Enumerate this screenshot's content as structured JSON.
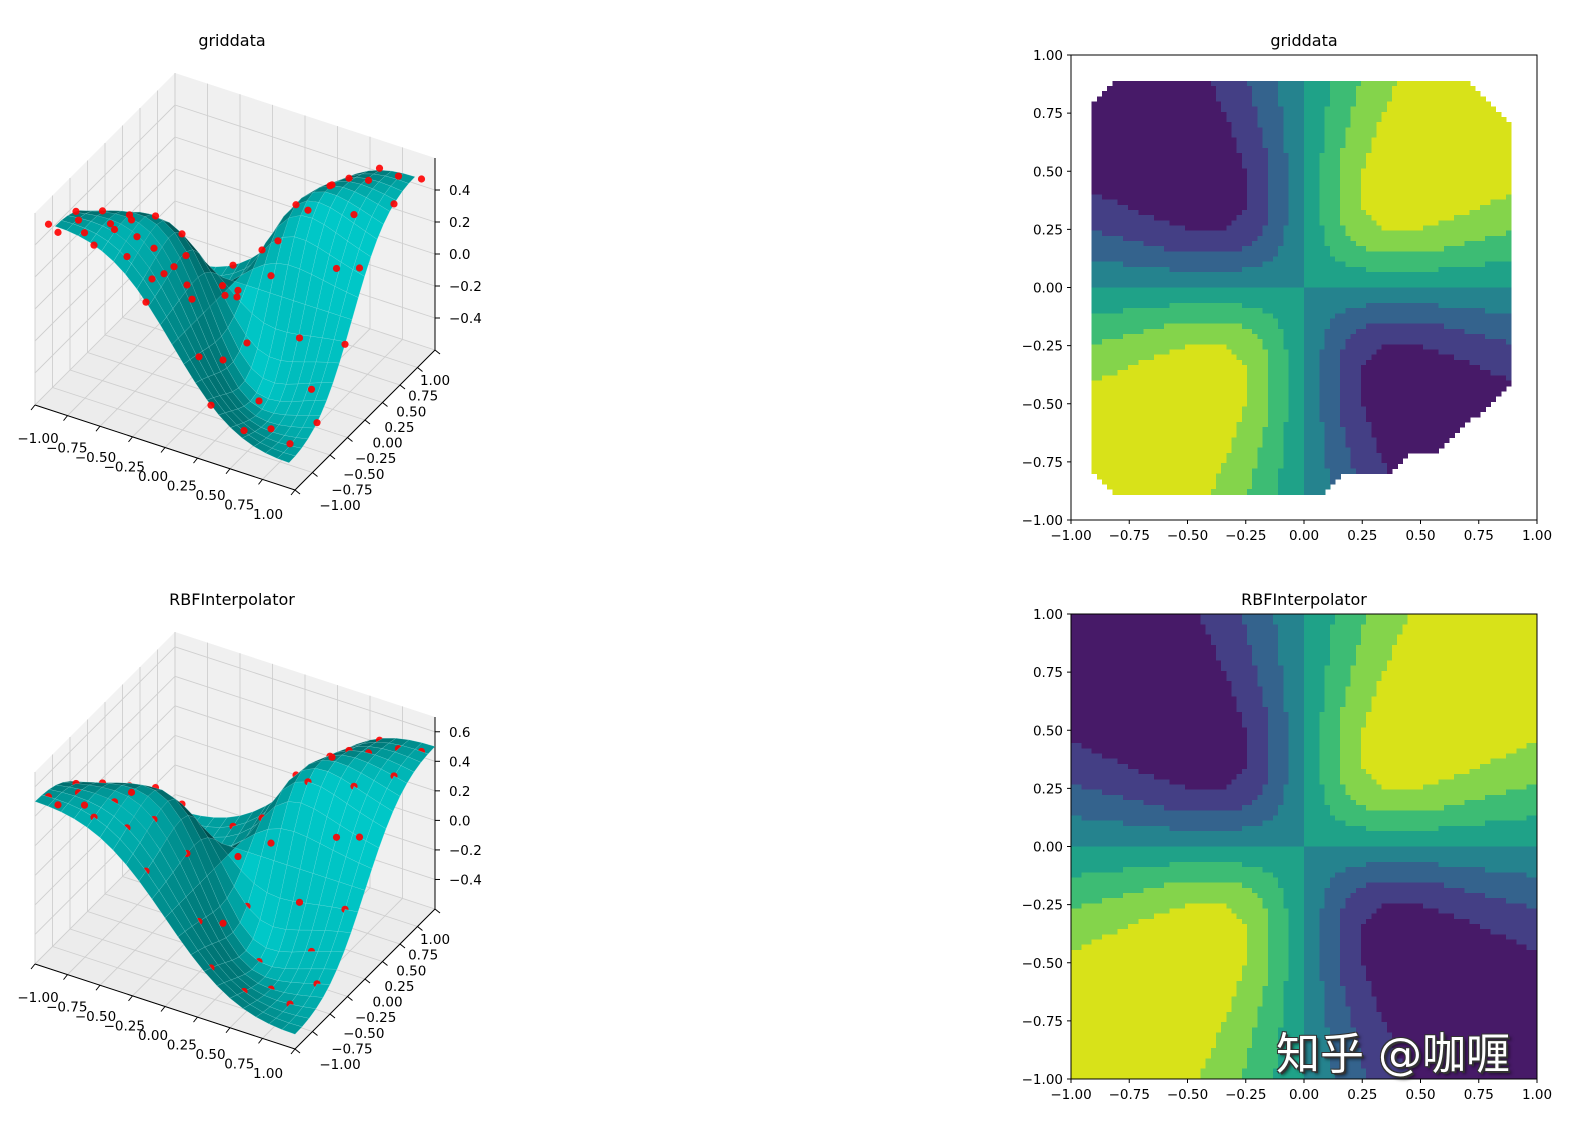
{
  "watermark": "知乎 @咖喱",
  "chart_data": [
    {
      "type": "surface3d",
      "title": "griddata",
      "xlim": [
        -1,
        1
      ],
      "ylim": [
        -1,
        1
      ],
      "zlim": [
        -0.6,
        0.6
      ],
      "xticks": [
        -1,
        -0.75,
        -0.5,
        -0.25,
        0,
        0.25,
        0.5,
        0.75,
        1
      ],
      "xtick_labels": [
        "−1.00",
        "−0.75",
        "−0.50",
        "−0.25",
        "0.00",
        "0.25",
        "0.50",
        "0.75",
        "1.00"
      ],
      "yticks": [
        -1,
        -0.75,
        -0.5,
        -0.25,
        0,
        0.25,
        0.5,
        0.75,
        1
      ],
      "ytick_labels": [
        "−1.00",
        "−0.75",
        "−0.50",
        "−0.25",
        "0.00",
        "0.25",
        "0.50",
        "0.75",
        "1.00"
      ],
      "zticks": [
        -0.4,
        -0.2,
        0,
        0.2,
        0.4
      ],
      "ztick_labels": [
        "−0.4",
        "−0.2",
        "0.0",
        "0.2",
        "0.4"
      ],
      "surface_extent": [
        -0.9,
        0.9
      ],
      "surface_color": "#00bfbf",
      "scatter_color": "#ff0000",
      "grid": true
    },
    {
      "type": "contourf",
      "title": "griddata",
      "xlim": [
        -1,
        1
      ],
      "ylim": [
        -1,
        1
      ],
      "xticks": [
        -1,
        -0.75,
        -0.5,
        -0.25,
        0,
        0.25,
        0.5,
        0.75,
        1
      ],
      "xtick_labels": [
        "−1.00",
        "−0.75",
        "−0.50",
        "−0.25",
        "0.00",
        "0.25",
        "0.50",
        "0.75",
        "1.00"
      ],
      "yticks": [
        -1,
        -0.75,
        -0.5,
        -0.25,
        0,
        0.25,
        0.5,
        0.75,
        1
      ],
      "ytick_labels": [
        "−1.00",
        "−0.75",
        "−0.50",
        "−0.25",
        "0.00",
        "0.25",
        "0.50",
        "0.75",
        "1.00"
      ],
      "levels": [
        -0.5,
        -0.375,
        -0.25,
        -0.125,
        0,
        0.125,
        0.25,
        0.375,
        0.5
      ],
      "colors": [
        "#471a68",
        "#443f85",
        "#34638d",
        "#25838e",
        "#1fa288",
        "#3dbc74",
        "#84d44b",
        "#d8e219"
      ],
      "data_region": [
        [
          -0.9,
          0.8
        ],
        [
          -0.8,
          0.9
        ],
        [
          0.7,
          0.9
        ],
        [
          0.9,
          0.7
        ],
        [
          0.9,
          -0.4
        ],
        [
          0.58,
          -0.7
        ],
        [
          0.47,
          -0.7
        ],
        [
          0.37,
          -0.8
        ],
        [
          0.16,
          -0.8
        ],
        [
          0.06,
          -0.9
        ],
        [
          -0.8,
          -0.9
        ],
        [
          -0.9,
          -0.8
        ]
      ]
    },
    {
      "type": "surface3d",
      "title": "RBFInterpolator",
      "xlim": [
        -1,
        1
      ],
      "ylim": [
        -1,
        1
      ],
      "zlim": [
        -0.6,
        0.7
      ],
      "xticks": [
        -1,
        -0.75,
        -0.5,
        -0.25,
        0,
        0.25,
        0.5,
        0.75,
        1
      ],
      "xtick_labels": [
        "−1.00",
        "−0.75",
        "−0.50",
        "−0.25",
        "0.00",
        "0.25",
        "0.50",
        "0.75",
        "1.00"
      ],
      "yticks": [
        -1,
        -0.75,
        -0.5,
        -0.25,
        0,
        0.25,
        0.5,
        0.75,
        1
      ],
      "ytick_labels": [
        "−1.00",
        "−0.75",
        "−0.50",
        "−0.25",
        "0.00",
        "0.25",
        "0.50",
        "0.75",
        "1.00"
      ],
      "zticks": [
        -0.4,
        -0.2,
        0,
        0.2,
        0.4,
        0.6
      ],
      "ztick_labels": [
        "−0.4",
        "−0.2",
        "0.0",
        "0.2",
        "0.4",
        "0.6"
      ],
      "surface_extent": [
        -1,
        1
      ],
      "surface_color": "#00bfbf",
      "scatter_color": "#ff0000",
      "grid": true
    },
    {
      "type": "contourf",
      "title": "RBFInterpolator",
      "xlim": [
        -1,
        1
      ],
      "ylim": [
        -1,
        1
      ],
      "xticks": [
        -1,
        -0.75,
        -0.5,
        -0.25,
        0,
        0.25,
        0.5,
        0.75,
        1
      ],
      "xtick_labels": [
        "−1.00",
        "−0.75",
        "−0.50",
        "−0.25",
        "0.00",
        "0.25",
        "0.50",
        "0.75",
        "1.00"
      ],
      "yticks": [
        -1,
        -0.75,
        -0.5,
        -0.25,
        0,
        0.25,
        0.5,
        0.75,
        1
      ],
      "ytick_labels": [
        "−1.00",
        "−0.75",
        "−0.50",
        "−0.25",
        "0.00",
        "0.25",
        "0.50",
        "0.75",
        "1.00"
      ],
      "levels": [
        -0.5,
        -0.375,
        -0.25,
        -0.125,
        0,
        0.125,
        0.25,
        0.375,
        0.5
      ],
      "colors": [
        "#471a68",
        "#443f85",
        "#34638d",
        "#25838e",
        "#1fa288",
        "#3dbc74",
        "#84d44b",
        "#d8e219"
      ]
    }
  ],
  "scatter_points": [
    [
      -0.95,
      -0.9
    ],
    [
      -0.85,
      -0.95
    ],
    [
      -0.8,
      -0.75
    ],
    [
      -0.7,
      -0.85
    ],
    [
      -0.6,
      -0.9
    ],
    [
      -0.55,
      -0.7
    ],
    [
      -0.9,
      -0.6
    ],
    [
      -0.75,
      -0.5
    ],
    [
      -0.5,
      -0.55
    ],
    [
      -0.4,
      -0.8
    ],
    [
      -0.3,
      -0.6
    ],
    [
      -0.2,
      -0.9
    ],
    [
      -0.65,
      -0.3
    ],
    [
      -0.45,
      -0.3
    ],
    [
      -0.85,
      -0.2
    ],
    [
      -0.6,
      0.1
    ],
    [
      -0.3,
      -0.2
    ],
    [
      -0.1,
      -0.5
    ],
    [
      0.1,
      -0.7
    ],
    [
      0.3,
      -0.9
    ],
    [
      0.5,
      -0.8
    ],
    [
      0.6,
      -0.6
    ],
    [
      0.8,
      -0.7
    ],
    [
      0.9,
      -0.5
    ],
    [
      0.75,
      -0.3
    ],
    [
      0.4,
      -0.4
    ],
    [
      0.2,
      -0.2
    ],
    [
      0.55,
      -0.1
    ],
    [
      0.9,
      -0.1
    ],
    [
      0.85,
      0.2
    ],
    [
      0.7,
      0.4
    ],
    [
      0.9,
      0.6
    ],
    [
      0.95,
      0.9
    ],
    [
      0.8,
      0.85
    ],
    [
      0.6,
      0.95
    ],
    [
      0.5,
      0.7
    ],
    [
      0.3,
      0.8
    ],
    [
      0.2,
      0.5
    ],
    [
      0.4,
      0.3
    ],
    [
      0.65,
      0.7
    ],
    [
      0.1,
      0.2
    ],
    [
      -0.15,
      0.1
    ],
    [
      -0.2,
      0.4
    ],
    [
      -0.4,
      0.6
    ],
    [
      -0.1,
      0.8
    ],
    [
      -0.6,
      0.5
    ],
    [
      -0.8,
      0.3
    ],
    [
      -0.5,
      0.9
    ],
    [
      -0.9,
      0.8
    ],
    [
      0.05,
      -0.05
    ],
    [
      0.25,
      0.05
    ],
    [
      -0.35,
      -0.05
    ],
    [
      0.45,
      0.55
    ],
    [
      -0.7,
      -0.1
    ],
    [
      0.15,
      -0.45
    ],
    [
      0.7,
      0.15
    ]
  ]
}
